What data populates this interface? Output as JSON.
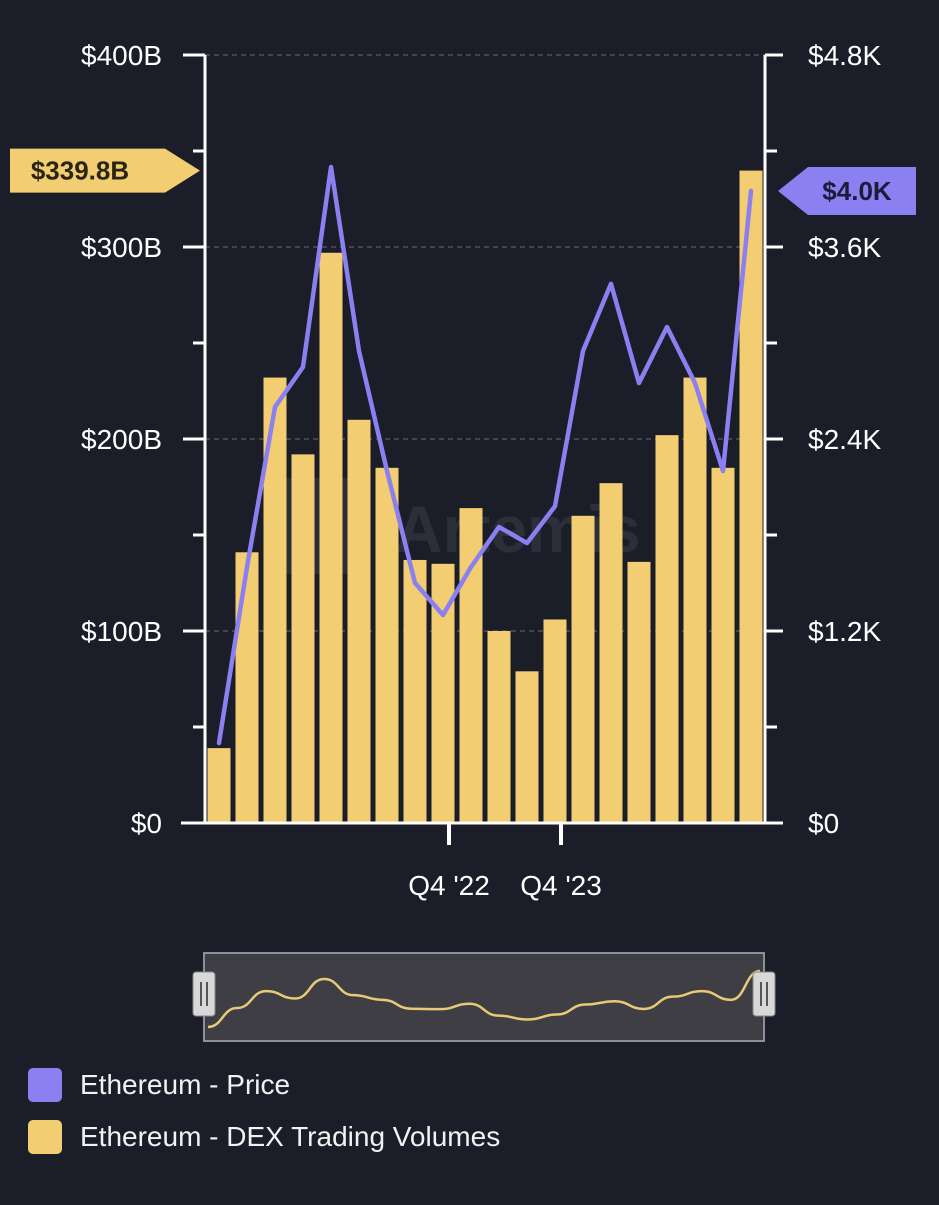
{
  "colors": {
    "background": "#1b1e29",
    "bar": "#f2cd72",
    "line": "#8a80f2",
    "axis": "#ffffff",
    "grid": "#5a5d68",
    "navigator_bg": "#3e3e44",
    "navigator_border": "#8d8f98",
    "navigator_line": "#e8c977",
    "handle": "#d8d8d8"
  },
  "watermark": "Artemis",
  "chart_data": {
    "type": "bar+line",
    "left_axis": {
      "min": 0,
      "max": 400,
      "ticks": [
        "$0",
        "$100B",
        "$200B",
        "$300B",
        "$400B"
      ]
    },
    "right_axis": {
      "min": 0,
      "max": 4.8,
      "ticks": [
        "$0",
        "$1.2K",
        "$2.4K",
        "$3.6K",
        "$4.8K"
      ]
    },
    "x_tick_labels": [
      {
        "label": "Q4 '22",
        "index": 8.5
      },
      {
        "label": "Q4 '23",
        "index": 12.5
      }
    ],
    "series": [
      {
        "name": "Ethereum - DEX Trading Volumes",
        "axis": "left",
        "unit": "$B",
        "values": [
          39,
          141,
          232,
          192,
          297,
          210,
          185,
          137,
          135,
          164,
          100,
          79,
          106,
          160,
          177,
          136,
          202,
          232,
          185,
          339.8
        ]
      },
      {
        "name": "Ethereum - Price",
        "axis": "right",
        "unit": "$K",
        "values": [
          0.5,
          1.6,
          2.6,
          2.85,
          4.1,
          2.95,
          2.2,
          1.5,
          1.3,
          1.6,
          1.85,
          1.75,
          1.98,
          2.95,
          3.37,
          2.75,
          3.1,
          2.75,
          2.2,
          3.95
        ]
      }
    ],
    "current_value_labels": {
      "left": "$339.8B",
      "right": "$4.0K"
    },
    "legend": [
      "Ethereum - Price",
      "Ethereum - DEX Trading Volumes"
    ]
  }
}
